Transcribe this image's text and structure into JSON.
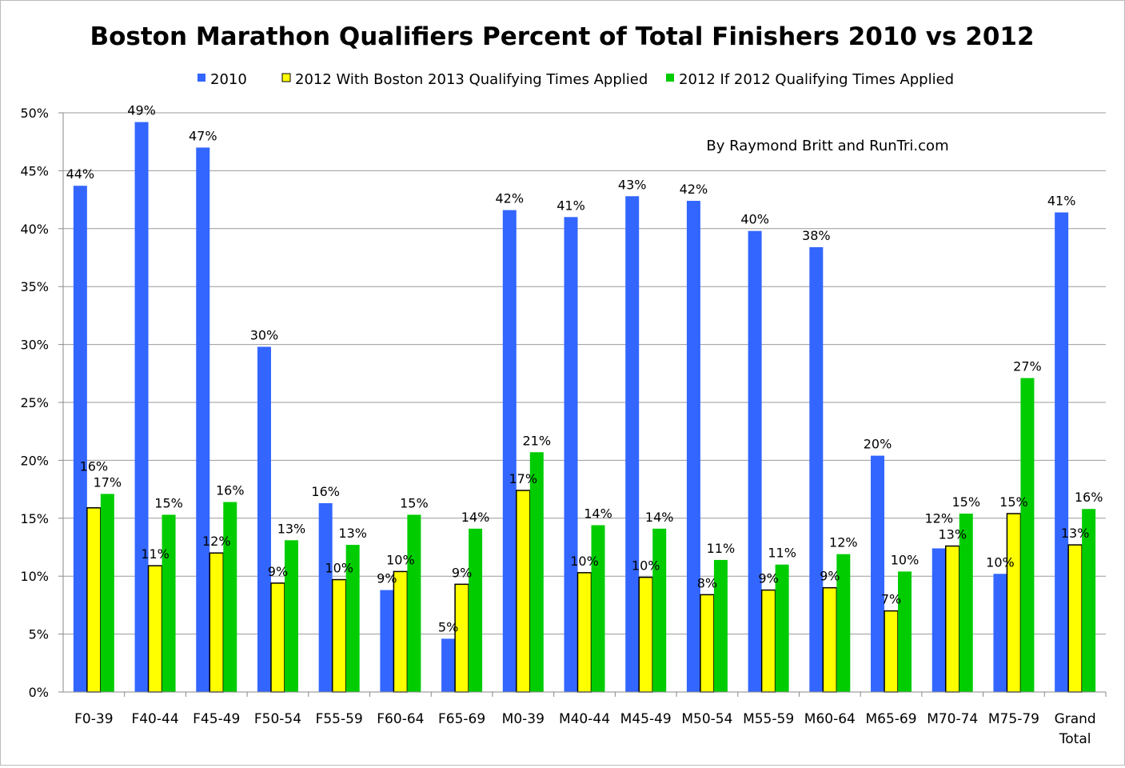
{
  "chart_data": {
    "type": "bar",
    "title": "Boston Marathon Qualifiers Percent of Total Finishers 2010 vs 2012",
    "annotation": "By Raymond Britt and RunTri.com",
    "legend_position": "top",
    "grid": true,
    "ylim": [
      0,
      50
    ],
    "yticks": [
      "0%",
      "5%",
      "10%",
      "15%",
      "20%",
      "25%",
      "30%",
      "35%",
      "40%",
      "45%",
      "50%"
    ],
    "categories": [
      "F0-39",
      "F40-44",
      "F45-49",
      "F50-54",
      "F55-59",
      "F60-64",
      "F65-69",
      "M0-39",
      "M40-44",
      "M45-49",
      "M50-54",
      "M55-59",
      "M60-64",
      "M65-69",
      "M70-74",
      "M75-79",
      "Grand Total"
    ],
    "series": [
      {
        "name": "2010",
        "color": "#3366ff",
        "values": [
          43.7,
          49.2,
          47.0,
          29.8,
          16.3,
          8.8,
          4.6,
          41.6,
          41.0,
          42.8,
          42.4,
          39.8,
          38.4,
          20.4,
          12.4,
          10.2,
          41.4
        ]
      },
      {
        "name": "2012 With Boston 2013 Qualifying Times Applied",
        "color": "#ffff00",
        "values": [
          15.9,
          10.9,
          12.0,
          9.4,
          9.7,
          10.4,
          9.3,
          17.4,
          10.3,
          9.9,
          8.4,
          8.8,
          9.0,
          7.0,
          12.6,
          15.4,
          12.7
        ]
      },
      {
        "name": "2012 If 2012 Qualifying Times Applied",
        "color": "#00cc00",
        "values": [
          17.1,
          15.3,
          16.4,
          13.1,
          12.7,
          15.3,
          14.1,
          20.7,
          14.4,
          14.1,
          11.4,
          11.0,
          11.9,
          10.4,
          15.4,
          27.1,
          15.8
        ]
      }
    ]
  }
}
